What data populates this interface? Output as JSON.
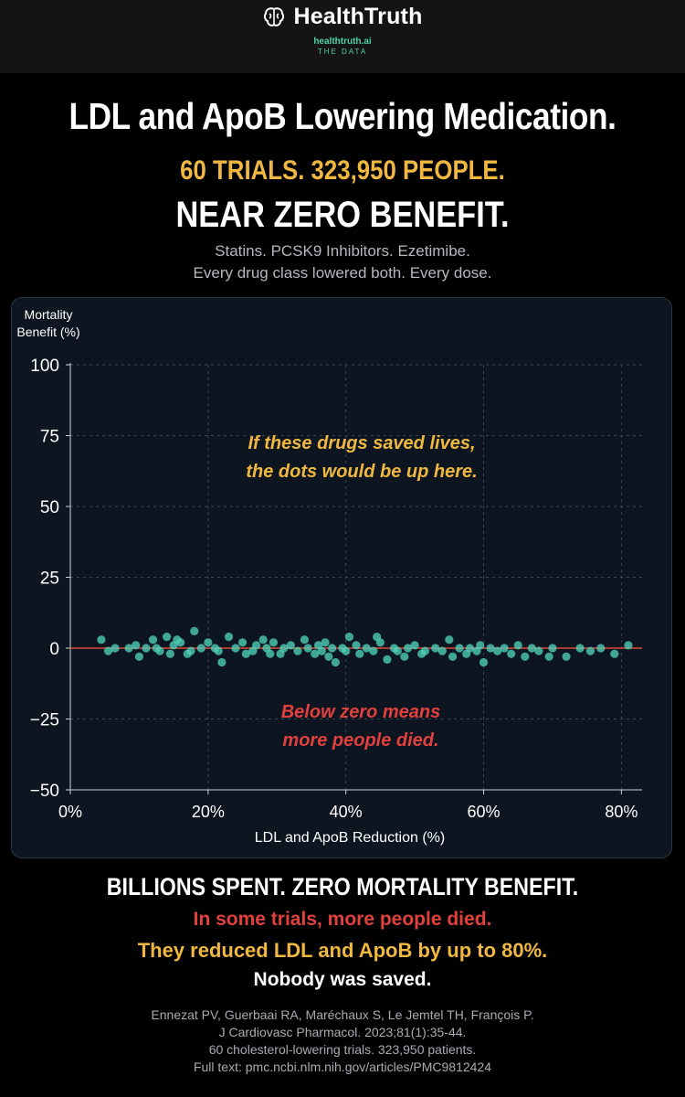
{
  "brand": {
    "name": "HealthTruth",
    "url": "healthtruth.ai",
    "tagline": "THE DATA",
    "logo_icon": "brain-icon",
    "accent_color": "#4fd1a8"
  },
  "header": {
    "title": "LDL and ApoB Lowering Medication.",
    "stat_line": "60 TRIALS. 323,950 PEOPLE.",
    "verdict": "NEAR ZERO BENEFIT.",
    "drugs_line": "Statins. PCSK9 Inhibitors. Ezetimibe.",
    "detail_line": "Every drug class lowered both. Every dose."
  },
  "chart_data": {
    "type": "scatter",
    "xlabel": "LDL and ApoB Reduction (%)",
    "ylabel_line1": "Mortality",
    "ylabel_line2": "Benefit (%)",
    "xlim": [
      0,
      83
    ],
    "ylim": [
      -50,
      100
    ],
    "x_ticks": [
      0,
      20,
      40,
      60,
      80
    ],
    "x_tick_labels": [
      "0%",
      "20%",
      "40%",
      "60%",
      "80%"
    ],
    "y_ticks": [
      100,
      75,
      50,
      25,
      0,
      -25,
      -50
    ],
    "y_tick_labels": [
      "100",
      "75",
      "50",
      "25",
      "0",
      "−25",
      "−50"
    ],
    "grid": true,
    "zero_line_color": "#d94a3a",
    "point_color": "#4fd1b8",
    "annotation_top_line1": "If these drugs saved lives,",
    "annotation_top_line2": "the dots would be up here.",
    "annotation_top_color": "#f0b840",
    "annotation_bottom_line1": "Below zero means",
    "annotation_bottom_line2": "more people died.",
    "annotation_bottom_color": "#e2403c",
    "points": [
      [
        4.5,
        3
      ],
      [
        5.5,
        -1
      ],
      [
        6.5,
        0
      ],
      [
        8.5,
        0
      ],
      [
        9.5,
        1
      ],
      [
        10,
        -3
      ],
      [
        11,
        0
      ],
      [
        12,
        3
      ],
      [
        12.5,
        0
      ],
      [
        13,
        -1
      ],
      [
        14,
        4
      ],
      [
        14.5,
        -2
      ],
      [
        15,
        1
      ],
      [
        15.5,
        3
      ],
      [
        16,
        2
      ],
      [
        17,
        -2
      ],
      [
        17.5,
        -1
      ],
      [
        18,
        6
      ],
      [
        19,
        0
      ],
      [
        20,
        2
      ],
      [
        21,
        0
      ],
      [
        21.5,
        -1
      ],
      [
        22,
        -5
      ],
      [
        23,
        4
      ],
      [
        24,
        0
      ],
      [
        25,
        2
      ],
      [
        25.5,
        -2
      ],
      [
        26.5,
        -1
      ],
      [
        27,
        1
      ],
      [
        28,
        3
      ],
      [
        28.5,
        0
      ],
      [
        29,
        -2
      ],
      [
        29.5,
        2
      ],
      [
        30.5,
        -2
      ],
      [
        31,
        0
      ],
      [
        32,
        1
      ],
      [
        33,
        -1
      ],
      [
        34,
        3
      ],
      [
        34.5,
        0
      ],
      [
        35.5,
        -2
      ],
      [
        36,
        1
      ],
      [
        36.5,
        -1
      ],
      [
        37,
        2
      ],
      [
        37.5,
        -3
      ],
      [
        38,
        0
      ],
      [
        38.5,
        -5
      ],
      [
        39.5,
        0
      ],
      [
        40,
        -1
      ],
      [
        40.5,
        4
      ],
      [
        41.5,
        1
      ],
      [
        42,
        -2
      ],
      [
        43,
        0
      ],
      [
        44,
        -1
      ],
      [
        44.5,
        4
      ],
      [
        45,
        2
      ],
      [
        46,
        -4
      ],
      [
        47,
        0
      ],
      [
        47.5,
        -1
      ],
      [
        48.5,
        -3
      ],
      [
        49,
        0
      ],
      [
        50,
        1
      ],
      [
        51,
        -2
      ],
      [
        51.5,
        -1
      ],
      [
        53,
        0
      ],
      [
        54,
        -1
      ],
      [
        55,
        3
      ],
      [
        55.5,
        -3
      ],
      [
        56.5,
        0
      ],
      [
        57.5,
        -2
      ],
      [
        58,
        0
      ],
      [
        59,
        -1
      ],
      [
        59.5,
        1
      ],
      [
        60,
        -5
      ],
      [
        61,
        0
      ],
      [
        62,
        -1
      ],
      [
        63,
        0
      ],
      [
        64,
        -2
      ],
      [
        65,
        1
      ],
      [
        66,
        -3
      ],
      [
        67,
        0
      ],
      [
        68,
        -1
      ],
      [
        69.5,
        -3
      ],
      [
        70,
        0
      ],
      [
        72,
        -3
      ],
      [
        74,
        0
      ],
      [
        75.5,
        -1
      ],
      [
        77,
        0
      ],
      [
        79,
        -2
      ],
      [
        81,
        1
      ]
    ]
  },
  "footer": {
    "headline": "BILLIONS SPENT. ZERO MORTALITY BENEFIT.",
    "line_red": "In some trials, more people died.",
    "line_gold": "They reduced LDL and ApoB by up to 80%.",
    "line_white": "Nobody was saved.",
    "citation_1": "Ennezat PV, Guerbaai RA, Maréchaux S, Le Jemtel TH, François P.",
    "citation_2": "J Cardiovasc Pharmacol. 2023;81(1):35-44.",
    "citation_3": "60 cholesterol-lowering trials. 323,950 patients.",
    "citation_4": "Full text: pmc.ncbi.nlm.nih.gov/articles/PMC9812424"
  }
}
